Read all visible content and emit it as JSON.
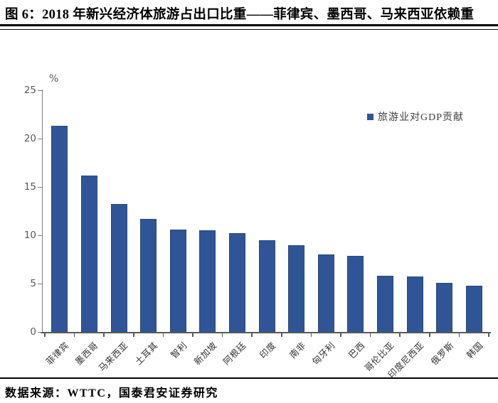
{
  "title": "图 6：2018 年新兴经济体旅游占出口比重——菲律宾、墨西哥、马来西亚依赖重",
  "footer": {
    "source_text": "数据来源：WTTC，国泰君安证券研究"
  },
  "chart_data": {
    "type": "bar",
    "title": "2018 年新兴经济体旅游占出口比重",
    "unit_label": "%",
    "legend": [
      {
        "label": "旅游业对GDP贡献"
      }
    ],
    "legend_position": "upper-right",
    "categories": [
      "菲律宾",
      "墨西哥",
      "马来西亚",
      "土耳其",
      "智利",
      "新加坡",
      "阿根廷",
      "印度",
      "南非",
      "匈牙利",
      "巴西",
      "哥伦比亚",
      "印度尼西亚",
      "俄罗斯",
      "韩国"
    ],
    "series": [
      {
        "name": "旅游业对GDP贡献",
        "values": [
          21.3,
          16.2,
          13.2,
          11.7,
          10.6,
          10.5,
          10.2,
          9.5,
          9.0,
          8.0,
          7.9,
          5.8,
          5.7,
          5.1,
          4.8
        ]
      }
    ],
    "xlabel": "",
    "ylabel": "%",
    "ylim": [
      0,
      25
    ],
    "yticks": [
      0,
      5,
      10,
      15,
      20,
      25
    ],
    "grid": false,
    "bar_color": "#2F5597",
    "bar_border_color": "#29497C",
    "axis_color": "#595959"
  }
}
